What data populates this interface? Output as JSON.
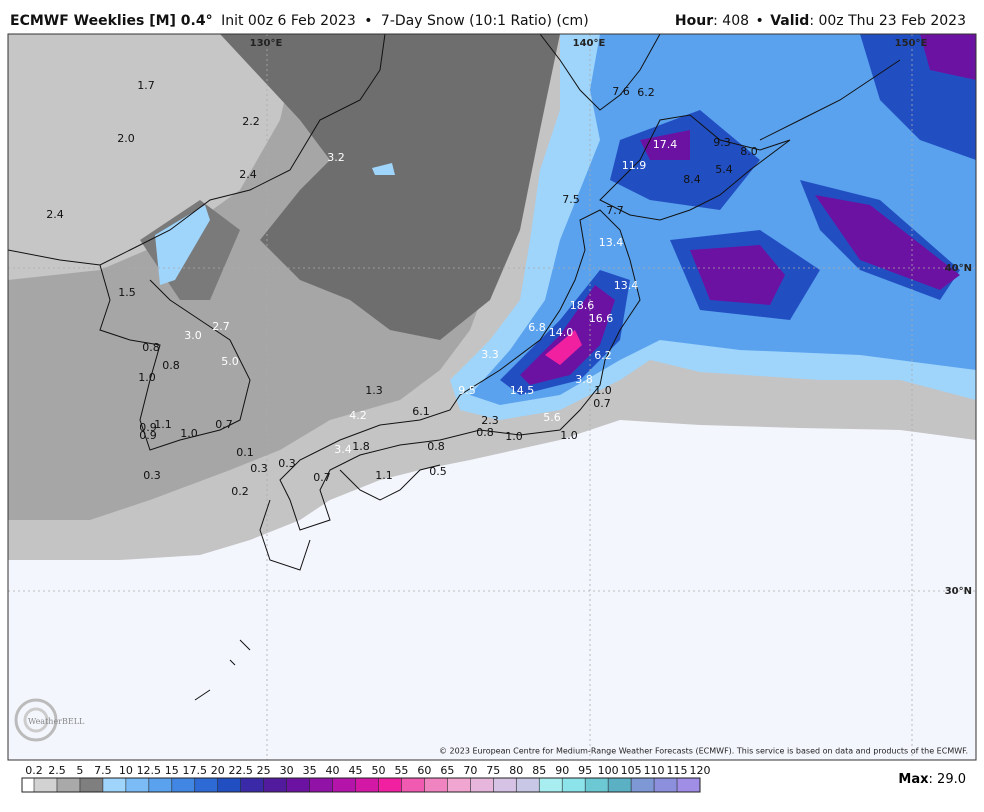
{
  "header": {
    "model": "ECMWF Weeklies [M] 0.4°",
    "init": "Init 00z 6 Feb 2023",
    "separator": "•",
    "product": "7-Day Snow (10:1 Ratio) (cm)",
    "hour_label": "Hour",
    "hour": ": 408",
    "valid_label": "Valid",
    "valid": ": 00z Thu 23 Feb 2023"
  },
  "grid_labels": {
    "lon": [
      "130°E",
      "140°E",
      "150°E"
    ],
    "lat": [
      "40°N",
      "30°N"
    ]
  },
  "map_labels": [
    "1.7",
    "2.0",
    "2.2",
    "3.2",
    "2.4",
    "2.4",
    "1.5",
    "3.0",
    "2.7",
    "0.8",
    "5.0",
    "0.8",
    "1.0",
    "1.3",
    "4.2",
    "6.1",
    "9.5",
    "14.5",
    "3.8",
    "6.2",
    "14.0",
    "18.6",
    "16.6",
    "6.8",
    "3.3",
    "13.4",
    "13.4",
    "7.7",
    "7.5",
    "11.9",
    "17.4",
    "7.6",
    "6.2",
    "9.3",
    "8.0",
    "5.4",
    "8.4",
    "1.0",
    "0.7",
    "5.6",
    "1.0",
    "2.3",
    "0.8",
    "1.0",
    "0.8",
    "3.4",
    "1.8",
    "1.1",
    "0.9",
    "0.9",
    "1.0",
    "0.7",
    "0.1",
    "0.3",
    "0.3",
    "0.7",
    "0.5",
    "1.1",
    "0.3",
    "0.2"
  ],
  "logo": "WeatherBELL",
  "copyright": "© 2023 European Centre for Medium-Range Weather Forecasts (ECMWF). This service is based on data and products of the ECMWF.",
  "colorbar": {
    "ticks": [
      "0.2",
      "2.5",
      "5",
      "7.5",
      "10",
      "12.5",
      "15",
      "17.5",
      "20",
      "22.5",
      "25",
      "30",
      "35",
      "40",
      "45",
      "50",
      "55",
      "60",
      "65",
      "70",
      "75",
      "80",
      "85",
      "90",
      "95",
      "100",
      "105",
      "110",
      "115",
      "120"
    ],
    "colors": [
      "#ffffff",
      "#d2d2d2",
      "#a9a9a9",
      "#7f7f7f",
      "#9fd4fb",
      "#7cbcf6",
      "#5aa2ee",
      "#4186e2",
      "#2e6ad6",
      "#214fc2",
      "#3a2aa8",
      "#521a9c",
      "#6c12a2",
      "#9012a6",
      "#b414aa",
      "#d418a6",
      "#f020a0",
      "#f05ab0",
      "#f084c0",
      "#f0a6d0",
      "#e6b6dc",
      "#d6c2e4",
      "#c8c8e6",
      "#a8eef0",
      "#8ce4ea",
      "#6cc8d2",
      "#5cb0c4",
      "#7e98d6",
      "#8c90dc",
      "#a08ee6",
      "#c090f0"
    ]
  },
  "max": {
    "label": "Max",
    "value": ": 29.0"
  }
}
